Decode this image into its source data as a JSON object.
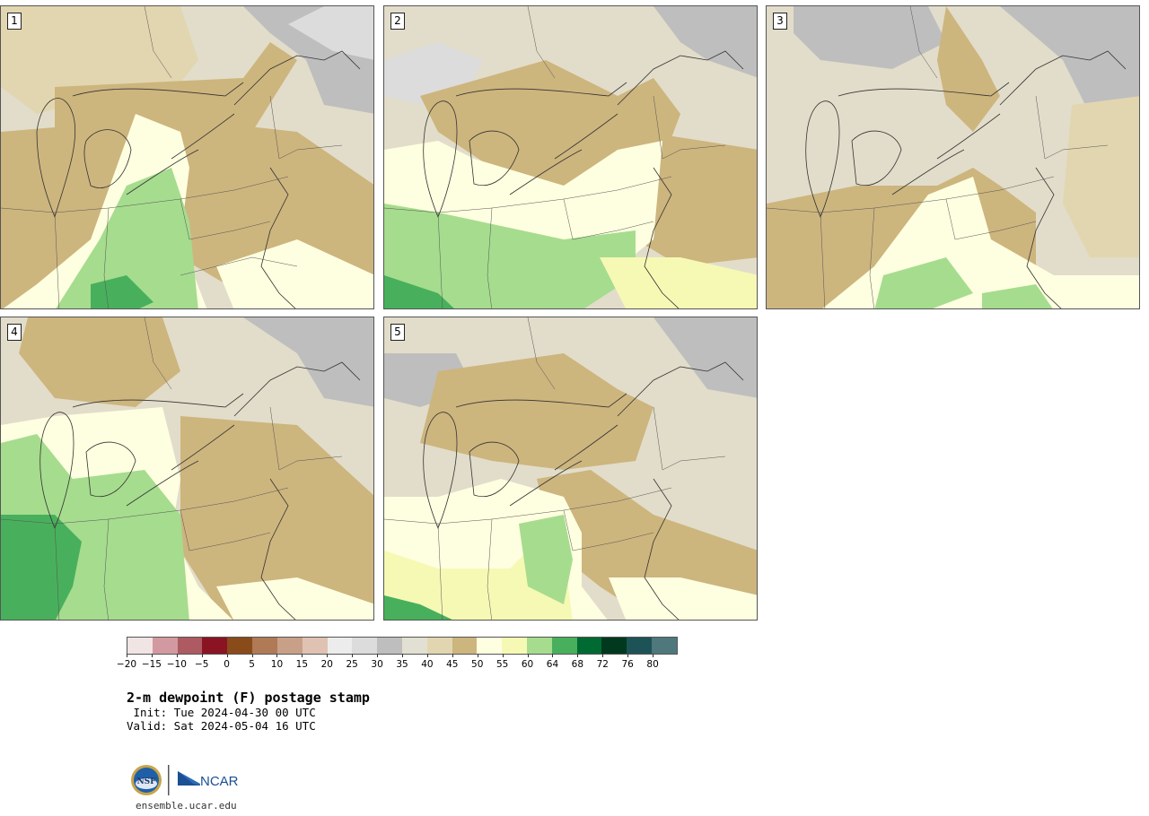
{
  "panels": [
    {
      "label": "1"
    },
    {
      "label": "2"
    },
    {
      "label": "3"
    },
    {
      "label": "4"
    },
    {
      "label": "5"
    }
  ],
  "colorbar": {
    "colors": [
      "#f0e4e4",
      "#d29aa0",
      "#ad5a62",
      "#8b1423",
      "#8a4b1a",
      "#b07a56",
      "#c8a088",
      "#e0c2b2",
      "#ececec",
      "#dcdcdc",
      "#bebebe",
      "#e2e0d2",
      "#e2d6b0",
      "#cdb57e",
      "#feffe0",
      "#f6f9b4",
      "#a6dc8e",
      "#48b05c",
      "#006a33",
      "#00391d",
      "#1d5357",
      "#4e787c"
    ],
    "ticks": [
      "−20",
      "−15",
      "−10",
      "−5",
      "0",
      "5",
      "10",
      "15",
      "20",
      "25",
      "30",
      "35",
      "40",
      "45",
      "50",
      "55",
      "60",
      "64",
      "68",
      "72",
      "76",
      "80"
    ]
  },
  "title": "2-m dewpoint (F) postage stamp",
  "init": " Init: Tue 2024-04-30 00 UTC",
  "valid": "Valid: Sat 2024-05-04 16 UTC",
  "logo": {
    "nsf": "NSF",
    "ncar": "NCAR"
  },
  "site": "ensemble.ucar.edu"
}
